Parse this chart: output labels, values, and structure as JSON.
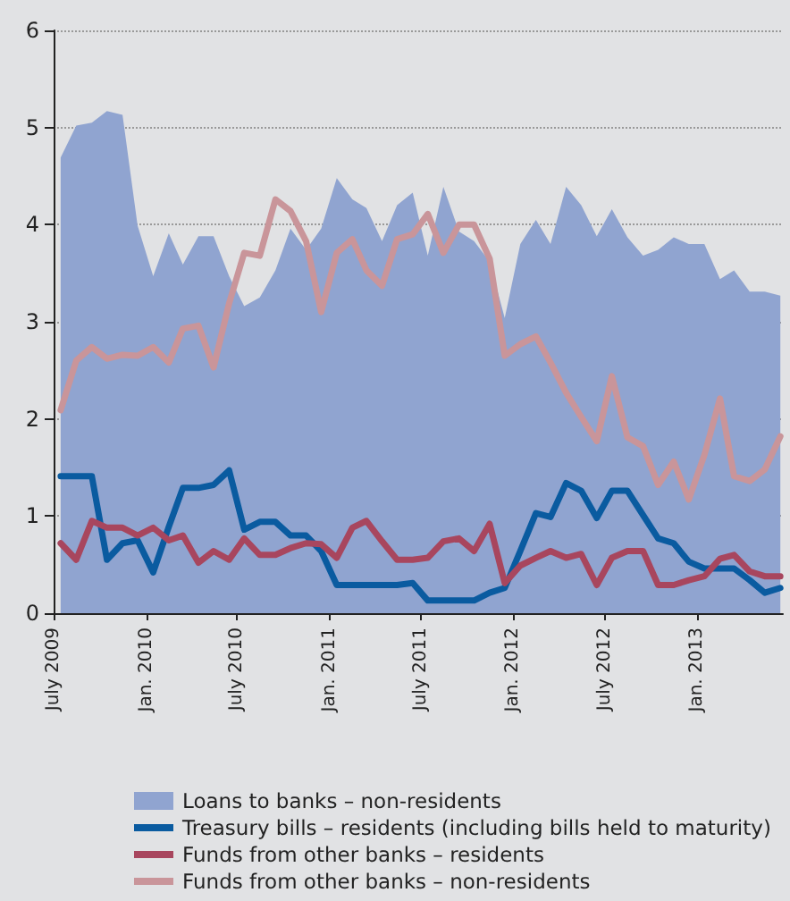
{
  "chart_data": {
    "type": "line",
    "x": [
      "2009-07-15",
      "2009-08-15",
      "2009-09-15",
      "2009-10-15",
      "2009-11-15",
      "2009-12-15",
      "2010-01-15",
      "2010-02-15",
      "2010-03-15",
      "2010-04-15",
      "2010-05-15",
      "2010-06-15",
      "2010-07-15",
      "2010-08-15",
      "2010-09-15",
      "2010-10-15",
      "2010-11-15",
      "2010-12-15",
      "2011-01-15",
      "2011-02-15",
      "2011-03-15",
      "2011-04-15",
      "2011-05-15",
      "2011-06-15",
      "2011-07-15",
      "2011-08-15",
      "2011-09-15",
      "2011-10-15",
      "2011-11-15",
      "2011-12-15",
      "2012-01-15",
      "2012-02-15",
      "2012-03-15",
      "2012-04-15",
      "2012-05-15",
      "2012-06-15",
      "2012-07-15",
      "2012-08-15",
      "2012-09-15",
      "2012-10-15",
      "2012-11-15",
      "2012-12-15",
      "2013-01-15",
      "2013-02-15",
      "2013-03-15",
      "2013-04-15",
      "2013-05-15",
      "2013-06-15"
    ],
    "series": [
      {
        "name": "Loans to banks – non-residents",
        "type": "area",
        "color": "#90a4d0",
        "values": [
          4.69,
          5.02,
          5.05,
          5.17,
          5.13,
          3.99,
          3.47,
          3.91,
          3.59,
          3.88,
          3.88,
          3.47,
          3.16,
          3.25,
          3.53,
          3.96,
          3.74,
          3.96,
          4.48,
          4.26,
          4.17,
          3.83,
          4.2,
          4.33,
          3.68,
          4.39,
          3.93,
          3.83,
          3.62,
          3.04,
          3.8,
          4.05,
          3.8,
          4.39,
          4.2,
          3.88,
          4.16,
          3.87,
          3.68,
          3.74,
          3.87,
          3.8,
          3.8,
          3.44,
          3.53,
          3.31,
          3.31,
          3.27
        ]
      },
      {
        "name": "Treasury bills – residents (including bills held to maturity)",
        "color": "#0a5ba0",
        "values": [
          1.41,
          1.41,
          1.41,
          0.55,
          0.72,
          0.75,
          0.42,
          0.89,
          1.29,
          1.29,
          1.32,
          1.47,
          0.86,
          0.94,
          0.94,
          0.8,
          0.8,
          0.64,
          0.29,
          0.29,
          0.29,
          0.29,
          0.29,
          0.31,
          0.13,
          0.13,
          0.13,
          0.13,
          0.21,
          0.26,
          0.64,
          1.03,
          0.99,
          1.34,
          1.26,
          0.98,
          1.26,
          1.26,
          1.01,
          0.77,
          0.72,
          0.53,
          0.46,
          0.46,
          0.46,
          0.34,
          0.21,
          0.26
        ]
      },
      {
        "name": "Funds from other banks – residents",
        "color": "#a8465e",
        "values": [
          0.72,
          0.55,
          0.95,
          0.88,
          0.88,
          0.8,
          0.88,
          0.75,
          0.8,
          0.52,
          0.64,
          0.55,
          0.77,
          0.6,
          0.6,
          0.67,
          0.72,
          0.71,
          0.57,
          0.88,
          0.95,
          0.74,
          0.55,
          0.55,
          0.57,
          0.74,
          0.77,
          0.64,
          0.92,
          0.31,
          0.49,
          0.57,
          0.64,
          0.57,
          0.61,
          0.29,
          0.57,
          0.64,
          0.64,
          0.29,
          0.29,
          0.34,
          0.38,
          0.56,
          0.6,
          0.43,
          0.38,
          0.38
        ]
      },
      {
        "name": "Funds from other banks – non-residents",
        "color": "#c9959a",
        "values": [
          2.09,
          2.6,
          2.74,
          2.62,
          2.66,
          2.65,
          2.74,
          2.58,
          2.93,
          2.96,
          2.53,
          3.19,
          3.71,
          3.68,
          4.26,
          4.14,
          3.83,
          3.1,
          3.71,
          3.85,
          3.53,
          3.37,
          3.85,
          3.9,
          4.11,
          3.71,
          4.0,
          4.0,
          3.65,
          2.65,
          2.77,
          2.85,
          2.58,
          2.27,
          2.02,
          1.77,
          2.44,
          1.81,
          1.72,
          1.32,
          1.56,
          1.17,
          1.63,
          2.21,
          1.41,
          1.36,
          1.48,
          1.82
        ]
      }
    ],
    "xlim": [
      "2009-07-01",
      "2013-06-20"
    ],
    "xticks": [
      {
        "value": "2009-07",
        "label": "July 2009"
      },
      {
        "value": "2010-01",
        "label": "Jan. 2010"
      },
      {
        "value": "2010-07",
        "label": "July 2010"
      },
      {
        "value": "2011-01",
        "label": "Jan. 2011"
      },
      {
        "value": "2011-07",
        "label": "July 2011"
      },
      {
        "value": "2012-01",
        "label": "Jan. 2012"
      },
      {
        "value": "2012-07",
        "label": "July 2012"
      },
      {
        "value": "2013-01",
        "label": "Jan. 2013"
      }
    ],
    "ylim": [
      0,
      6
    ],
    "yticks": [
      0,
      1,
      2,
      3,
      4,
      5,
      6
    ],
    "grid": "y",
    "legend": "bottom",
    "marker": "none",
    "line_style": "solid"
  }
}
